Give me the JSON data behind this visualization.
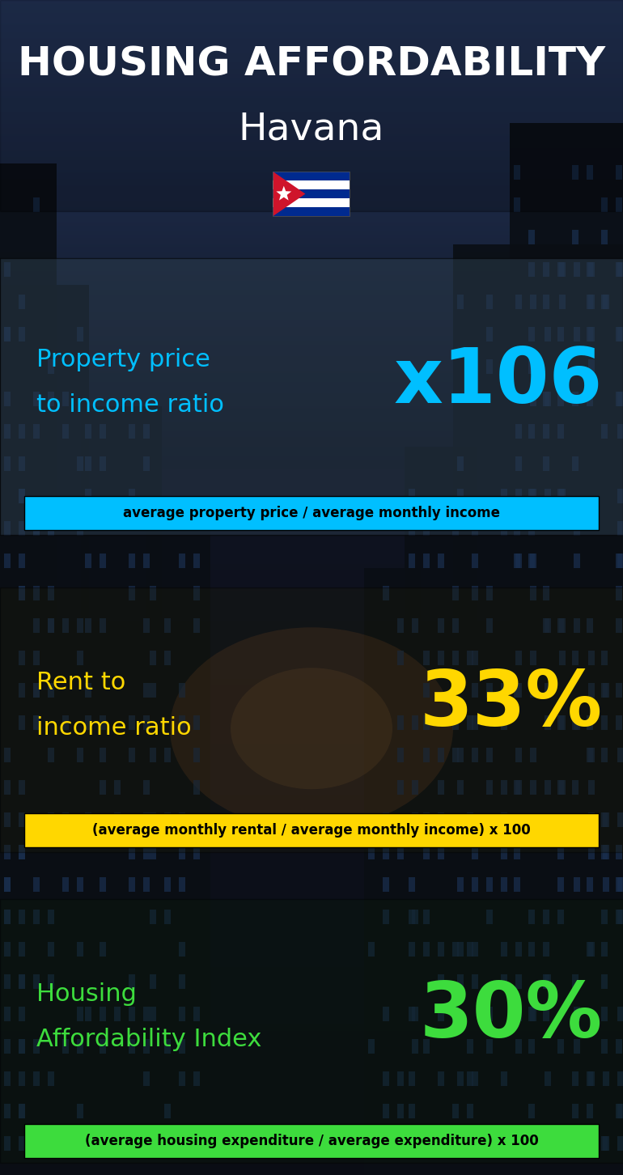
{
  "title_line1": "HOUSING AFFORDABILITY",
  "title_line2": "Havana",
  "section1_label_line1": "Property price",
  "section1_label_line2": "to income ratio",
  "section1_value": "x106",
  "section1_value_color": "#00bfff",
  "section1_label_color": "#00bfff",
  "section1_formula": "average property price / average monthly income",
  "section1_formula_bg": "#00bfff",
  "section2_label_line1": "Rent to",
  "section2_label_line2": "income ratio",
  "section2_value": "33%",
  "section2_value_color": "#ffd700",
  "section2_label_color": "#ffd700",
  "section2_formula": "(average monthly rental / average monthly income) x 100",
  "section2_formula_bg": "#ffd700",
  "section3_label_line1": "Housing",
  "section3_label_line2": "Affordability Index",
  "section3_value": "30%",
  "section3_value_color": "#3ddc3d",
  "section3_label_color": "#3ddc3d",
  "section3_formula": "(average housing expenditure / average expenditure) x 100",
  "section3_formula_bg": "#3ddc3d",
  "background_color": "#0d1117",
  "title_color": "#ffffff",
  "fig_width": 7.7,
  "fig_height": 14.52,
  "dpi": 100
}
